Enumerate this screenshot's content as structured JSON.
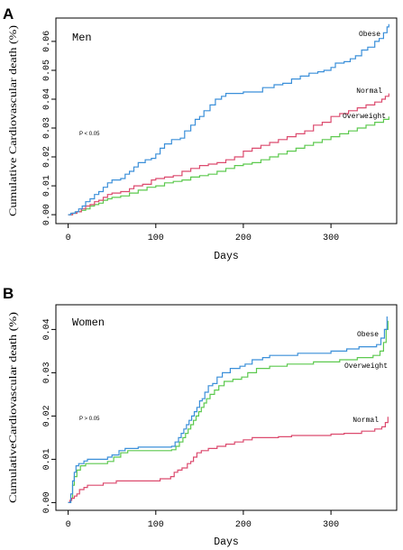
{
  "chart_data": [
    {
      "panel": "A",
      "type": "line",
      "step": true,
      "grid": false,
      "title": "Men",
      "annotation": "P < 0.05",
      "xlabel": "Days",
      "ylabel": "Cumulative Cardiovascular death (%)",
      "xlim": [
        -14,
        375
      ],
      "ylim": [
        -0.0031,
        0.0681
      ],
      "x_ticks": [
        "0",
        "100",
        "200",
        "300"
      ],
      "y_ticks": [
        "0.00",
        "0.01",
        "0.02",
        "0.03",
        "0.04",
        "0.05",
        "0.06"
      ],
      "series": [
        {
          "name": "Obese",
          "color": "#3a8fd9",
          "points": [
            [
              0,
              0
            ],
            [
              3,
              0.0005
            ],
            [
              8,
              0.001
            ],
            [
              12,
              0.002
            ],
            [
              16,
              0.003
            ],
            [
              20,
              0.0045
            ],
            [
              25,
              0.0055
            ],
            [
              30,
              0.007
            ],
            [
              35,
              0.008
            ],
            [
              40,
              0.0095
            ],
            [
              45,
              0.011
            ],
            [
              50,
              0.012
            ],
            [
              60,
              0.0125
            ],
            [
              65,
              0.014
            ],
            [
              70,
              0.015
            ],
            [
              75,
              0.0165
            ],
            [
              80,
              0.018
            ],
            [
              88,
              0.019
            ],
            [
              95,
              0.0195
            ],
            [
              100,
              0.021
            ],
            [
              105,
              0.023
            ],
            [
              110,
              0.0245
            ],
            [
              118,
              0.026
            ],
            [
              128,
              0.0265
            ],
            [
              133,
              0.029
            ],
            [
              140,
              0.031
            ],
            [
              145,
              0.033
            ],
            [
              150,
              0.034
            ],
            [
              155,
              0.036
            ],
            [
              162,
              0.038
            ],
            [
              168,
              0.04
            ],
            [
              175,
              0.041
            ],
            [
              180,
              0.042
            ],
            [
              200,
              0.0425
            ],
            [
              222,
              0.044
            ],
            [
              235,
              0.045
            ],
            [
              245,
              0.0455
            ],
            [
              255,
              0.047
            ],
            [
              265,
              0.048
            ],
            [
              275,
              0.049
            ],
            [
              285,
              0.0495
            ],
            [
              292,
              0.05
            ],
            [
              300,
              0.051
            ],
            [
              305,
              0.0525
            ],
            [
              315,
              0.053
            ],
            [
              322,
              0.054
            ],
            [
              328,
              0.055
            ],
            [
              335,
              0.057
            ],
            [
              342,
              0.058
            ],
            [
              350,
              0.06
            ],
            [
              355,
              0.061
            ],
            [
              360,
              0.063
            ],
            [
              364,
              0.065
            ],
            [
              366,
              0.066
            ]
          ]
        },
        {
          "name": "Normal",
          "color": "#dc4a6e",
          "points": [
            [
              0,
              0
            ],
            [
              5,
              0.0005
            ],
            [
              10,
              0.001
            ],
            [
              15,
              0.002
            ],
            [
              20,
              0.003
            ],
            [
              25,
              0.0035
            ],
            [
              30,
              0.0045
            ],
            [
              35,
              0.005
            ],
            [
              40,
              0.006
            ],
            [
              45,
              0.007
            ],
            [
              50,
              0.0075
            ],
            [
              60,
              0.008
            ],
            [
              70,
              0.009
            ],
            [
              75,
              0.01
            ],
            [
              85,
              0.0105
            ],
            [
              95,
              0.012
            ],
            [
              100,
              0.0125
            ],
            [
              110,
              0.013
            ],
            [
              120,
              0.0135
            ],
            [
              130,
              0.015
            ],
            [
              140,
              0.016
            ],
            [
              150,
              0.017
            ],
            [
              160,
              0.0175
            ],
            [
              170,
              0.018
            ],
            [
              180,
              0.019
            ],
            [
              190,
              0.02
            ],
            [
              200,
              0.022
            ],
            [
              210,
              0.023
            ],
            [
              220,
              0.024
            ],
            [
              230,
              0.025
            ],
            [
              240,
              0.026
            ],
            [
              250,
              0.027
            ],
            [
              260,
              0.028
            ],
            [
              270,
              0.029
            ],
            [
              280,
              0.031
            ],
            [
              290,
              0.032
            ],
            [
              300,
              0.034
            ],
            [
              310,
              0.035
            ],
            [
              320,
              0.036
            ],
            [
              330,
              0.037
            ],
            [
              340,
              0.038
            ],
            [
              350,
              0.039
            ],
            [
              358,
              0.04
            ],
            [
              362,
              0.041
            ],
            [
              366,
              0.042
            ]
          ]
        },
        {
          "name": "Overweight",
          "color": "#5cc94e",
          "points": [
            [
              0,
              0
            ],
            [
              5,
              0.0005
            ],
            [
              10,
              0.001
            ],
            [
              15,
              0.0015
            ],
            [
              20,
              0.002
            ],
            [
              25,
              0.003
            ],
            [
              30,
              0.0035
            ],
            [
              35,
              0.004
            ],
            [
              40,
              0.005
            ],
            [
              45,
              0.0055
            ],
            [
              50,
              0.006
            ],
            [
              60,
              0.0065
            ],
            [
              70,
              0.0075
            ],
            [
              80,
              0.0085
            ],
            [
              90,
              0.0095
            ],
            [
              100,
              0.01
            ],
            [
              110,
              0.011
            ],
            [
              120,
              0.0115
            ],
            [
              130,
              0.012
            ],
            [
              140,
              0.013
            ],
            [
              150,
              0.0135
            ],
            [
              160,
              0.014
            ],
            [
              170,
              0.015
            ],
            [
              180,
              0.016
            ],
            [
              190,
              0.017
            ],
            [
              200,
              0.0175
            ],
            [
              210,
              0.018
            ],
            [
              220,
              0.019
            ],
            [
              230,
              0.02
            ],
            [
              240,
              0.021
            ],
            [
              250,
              0.022
            ],
            [
              260,
              0.023
            ],
            [
              270,
              0.024
            ],
            [
              280,
              0.025
            ],
            [
              290,
              0.026
            ],
            [
              300,
              0.027
            ],
            [
              310,
              0.028
            ],
            [
              320,
              0.029
            ],
            [
              330,
              0.03
            ],
            [
              340,
              0.031
            ],
            [
              350,
              0.032
            ],
            [
              360,
              0.033
            ],
            [
              366,
              0.034
            ]
          ]
        }
      ]
    },
    {
      "panel": "B",
      "type": "line",
      "step": true,
      "grid": false,
      "title": "Women",
      "annotation": "P > 0.05",
      "xlabel": "Days",
      "ylabel": "CumulativeCardiovascular death (%)",
      "xlim": [
        -14,
        375
      ],
      "ylim": [
        -0.0018,
        0.0457
      ],
      "x_ticks": [
        "0",
        "100",
        "200",
        "300"
      ],
      "y_ticks": [
        "0.00",
        "0.01",
        "0.02",
        "0.03",
        "0.04"
      ],
      "series": [
        {
          "name": "Obese",
          "color": "#3a8fd9",
          "points": [
            [
              0,
              0
            ],
            [
              3,
              0.002
            ],
            [
              5,
              0.005
            ],
            [
              7,
              0.007
            ],
            [
              9,
              0.0085
            ],
            [
              12,
              0.009
            ],
            [
              18,
              0.0096
            ],
            [
              22,
              0.01
            ],
            [
              45,
              0.0105
            ],
            [
              50,
              0.011
            ],
            [
              58,
              0.012
            ],
            [
              65,
              0.0125
            ],
            [
              80,
              0.0128
            ],
            [
              118,
              0.013
            ],
            [
              122,
              0.014
            ],
            [
              126,
              0.015
            ],
            [
              129,
              0.016
            ],
            [
              132,
              0.017
            ],
            [
              135,
              0.018
            ],
            [
              138,
              0.019
            ],
            [
              141,
              0.02
            ],
            [
              144,
              0.021
            ],
            [
              147,
              0.022
            ],
            [
              150,
              0.0235
            ],
            [
              153,
              0.024
            ],
            [
              156,
              0.0255
            ],
            [
              160,
              0.027
            ],
            [
              165,
              0.0275
            ],
            [
              170,
              0.029
            ],
            [
              176,
              0.03
            ],
            [
              185,
              0.031
            ],
            [
              196,
              0.0315
            ],
            [
              202,
              0.032
            ],
            [
              210,
              0.033
            ],
            [
              222,
              0.0335
            ],
            [
              230,
              0.034
            ],
            [
              262,
              0.0345
            ],
            [
              300,
              0.035
            ],
            [
              318,
              0.0355
            ],
            [
              332,
              0.036
            ],
            [
              352,
              0.0365
            ],
            [
              357,
              0.038
            ],
            [
              361,
              0.04
            ],
            [
              364,
              0.043
            ]
          ]
        },
        {
          "name": "Normal",
          "color": "#dc4a6e",
          "points": [
            [
              0,
              0
            ],
            [
              2,
              0.0005
            ],
            [
              4,
              0.001
            ],
            [
              7,
              0.0015
            ],
            [
              10,
              0.002
            ],
            [
              13,
              0.003
            ],
            [
              18,
              0.0035
            ],
            [
              22,
              0.004
            ],
            [
              40,
              0.0045
            ],
            [
              55,
              0.005
            ],
            [
              105,
              0.0055
            ],
            [
              117,
              0.006
            ],
            [
              121,
              0.007
            ],
            [
              125,
              0.0075
            ],
            [
              130,
              0.008
            ],
            [
              136,
              0.009
            ],
            [
              140,
              0.0095
            ],
            [
              143,
              0.0105
            ],
            [
              147,
              0.0115
            ],
            [
              152,
              0.012
            ],
            [
              160,
              0.0125
            ],
            [
              170,
              0.013
            ],
            [
              180,
              0.0135
            ],
            [
              190,
              0.014
            ],
            [
              200,
              0.0145
            ],
            [
              210,
              0.015
            ],
            [
              240,
              0.0152
            ],
            [
              255,
              0.0155
            ],
            [
              300,
              0.0158
            ],
            [
              315,
              0.016
            ],
            [
              335,
              0.0165
            ],
            [
              350,
              0.017
            ],
            [
              358,
              0.0175
            ],
            [
              362,
              0.0185
            ],
            [
              365,
              0.0198
            ]
          ]
        },
        {
          "name": "Overweight",
          "color": "#5cc94e",
          "points": [
            [
              0,
              0
            ],
            [
              3,
              0.001
            ],
            [
              5,
              0.004
            ],
            [
              7,
              0.006
            ],
            [
              10,
              0.0075
            ],
            [
              14,
              0.0085
            ],
            [
              20,
              0.009
            ],
            [
              45,
              0.0095
            ],
            [
              52,
              0.0105
            ],
            [
              60,
              0.0115
            ],
            [
              68,
              0.012
            ],
            [
              118,
              0.0122
            ],
            [
              123,
              0.013
            ],
            [
              127,
              0.014
            ],
            [
              131,
              0.015
            ],
            [
              134,
              0.016
            ],
            [
              137,
              0.017
            ],
            [
              140,
              0.018
            ],
            [
              143,
              0.019
            ],
            [
              146,
              0.02
            ],
            [
              149,
              0.021
            ],
            [
              152,
              0.022
            ],
            [
              155,
              0.023
            ],
            [
              158,
              0.024
            ],
            [
              162,
              0.025
            ],
            [
              167,
              0.026
            ],
            [
              172,
              0.027
            ],
            [
              178,
              0.028
            ],
            [
              188,
              0.0285
            ],
            [
              198,
              0.029
            ],
            [
              205,
              0.03
            ],
            [
              215,
              0.031
            ],
            [
              230,
              0.0315
            ],
            [
              250,
              0.032
            ],
            [
              280,
              0.0325
            ],
            [
              310,
              0.033
            ],
            [
              330,
              0.0335
            ],
            [
              348,
              0.034
            ],
            [
              356,
              0.035
            ],
            [
              360,
              0.037
            ],
            [
              363,
              0.04
            ],
            [
              365,
              0.042
            ]
          ]
        }
      ]
    }
  ]
}
